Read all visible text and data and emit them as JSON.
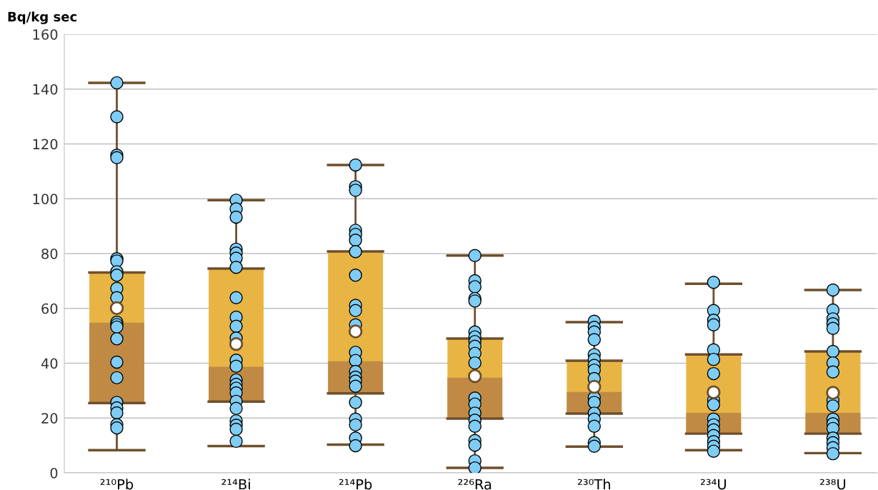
{
  "chart_data": {
    "type": "box",
    "ylabel": "Bq/kg sec",
    "categories": [
      "²¹⁰Pb",
      "²¹⁴Bi",
      "²¹⁴Pb",
      "²²⁶Ra",
      "²³⁰Th",
      "²³⁴U",
      "²³⁸U"
    ],
    "ylim": [
      0,
      160
    ],
    "yticks": [
      0,
      20,
      40,
      60,
      80,
      100,
      120,
      140,
      160
    ],
    "grid": "y",
    "series": [
      {
        "color": "#e8b444",
        "colors": [
          "#c08a45",
          "#c08a45",
          "#c08a45",
          "#c08a45",
          "#c08a45",
          "#c08a45",
          "#c08a45"
        ],
        "boxes": [
          {
            "low": 8.3,
            "q1": 25.5,
            "median": 54.8,
            "q3": 73.1,
            "high": 142.3,
            "mean": 60.1
          },
          {
            "low": 9.8,
            "q1": 26.0,
            "median": 38.7,
            "q3": 74.5,
            "high": 99.5,
            "mean": 47.0
          },
          {
            "low": 10.3,
            "q1": 29.0,
            "median": 40.7,
            "q3": 80.8,
            "high": 112.3,
            "mean": 51.6
          },
          {
            "low": 1.8,
            "q1": 19.8,
            "median": 34.7,
            "q3": 49.0,
            "high": 79.3,
            "mean": 35.3
          },
          {
            "low": 9.6,
            "q1": 21.6,
            "median": 29.5,
            "q3": 40.9,
            "high": 55.0,
            "mean": 31.4
          },
          {
            "low": 8.3,
            "q1": 14.3,
            "median": 21.9,
            "q3": 43.2,
            "high": 69.0,
            "mean": 29.4
          },
          {
            "low": 7.2,
            "q1": 14.3,
            "median": 21.9,
            "q3": 44.3,
            "high": 66.7,
            "mean": 29.2
          }
        ]
      },
      {
        "type": "scatter",
        "color": "#7fcdf5",
        "marker": "circle",
        "x": [
          "²¹⁰Pb",
          "²¹⁰Pb",
          "²¹⁰Pb",
          "²¹⁰Pb",
          "²¹⁰Pb",
          "²¹⁰Pb",
          "²¹⁰Pb",
          "²¹⁰Pb",
          "²¹⁰Pb",
          "²¹⁰Pb",
          "²¹⁰Pb",
          "²¹⁰Pb",
          "²¹⁰Pb",
          "²¹⁰Pb",
          "²¹⁰Pb",
          "²¹⁰Pb",
          "²¹⁰Pb",
          "²¹⁰Pb",
          "²¹⁰Pb",
          "²¹⁰Pb",
          "²¹⁰Pb",
          "²¹⁴Bi",
          "²¹⁴Bi",
          "²¹⁴Bi",
          "²¹⁴Bi",
          "²¹⁴Bi",
          "²¹⁴Bi",
          "²¹⁴Bi",
          "²¹⁴Bi",
          "²¹⁴Bi",
          "²¹⁴Bi",
          "²¹⁴Bi",
          "²¹⁴Bi",
          "²¹⁴Bi",
          "²¹⁴Bi",
          "²¹⁴Bi",
          "²¹⁴Bi",
          "²¹⁴Bi",
          "²¹⁴Bi",
          "²¹⁴Bi",
          "²¹⁴Bi",
          "²¹⁴Bi",
          "²¹⁴Bi",
          "²¹⁴Bi",
          "²¹⁴Pb",
          "²¹⁴Pb",
          "²¹⁴Pb",
          "²¹⁴Pb",
          "²¹⁴Pb",
          "²¹⁴Pb",
          "²¹⁴Pb",
          "²¹⁴Pb",
          "²¹⁴Pb",
          "²¹⁴Pb",
          "²¹⁴Pb",
          "²¹⁴Pb",
          "²¹⁴Pb",
          "²¹⁴Pb",
          "²¹⁴Pb",
          "²¹⁴Pb",
          "²¹⁴Pb",
          "²¹⁴Pb",
          "²¹⁴Pb",
          "²¹⁴Pb",
          "²¹⁴Pb",
          "²¹⁴Pb",
          "²²⁶Ra",
          "²²⁶Ra",
          "²²⁶Ra",
          "²²⁶Ra",
          "²²⁶Ra",
          "²²⁶Ra",
          "²²⁶Ra",
          "²²⁶Ra",
          "²²⁶Ra",
          "²²⁶Ra",
          "²²⁶Ra",
          "²²⁶Ra",
          "²²⁶Ra",
          "²²⁶Ra",
          "²²⁶Ra",
          "²²⁶Ra",
          "²²⁶Ra",
          "²²⁶Ra",
          "²²⁶Ra",
          "²²⁶Ra",
          "²³⁰Th",
          "²³⁰Th",
          "²³⁰Th",
          "²³⁰Th",
          "²³⁰Th",
          "²³⁰Th",
          "²³⁰Th",
          "²³⁰Th",
          "²³⁰Th",
          "²³⁰Th",
          "²³⁰Th",
          "²³⁰Th",
          "²³⁰Th",
          "²³⁰Th",
          "²³⁰Th",
          "²³⁰Th",
          "²³⁴U",
          "²³⁴U",
          "²³⁴U",
          "²³⁴U",
          "²³⁴U",
          "²³⁴U",
          "²³⁴U",
          "²³⁴U",
          "²³⁴U",
          "²³⁴U",
          "²³⁴U",
          "²³⁴U",
          "²³⁴U",
          "²³⁴U",
          "²³⁴U",
          "²³⁴U",
          "²³⁸U",
          "²³⁸U",
          "²³⁸U",
          "²³⁸U",
          "²³⁸U",
          "²³⁸U",
          "²³⁸U",
          "²³⁸U",
          "²³⁸U",
          "²³⁸U",
          "²³⁸U",
          "²³⁸U",
          "²³⁸U",
          "²³⁸U",
          "²³⁸U",
          "²³⁸U",
          "²³⁸U"
        ],
        "values": [
          142.3,
          129.9,
          115.9,
          115.0,
          78.1,
          77.3,
          73.4,
          72.1,
          67.3,
          63.9,
          55.0,
          54.1,
          53.2,
          48.9,
          40.4,
          34.7,
          25.7,
          23.7,
          21.9,
          17.6,
          16.4,
          99.5,
          96.3,
          93.3,
          81.6,
          80.2,
          78.3,
          75.0,
          63.9,
          56.8,
          53.5,
          49.2,
          41.1,
          38.9,
          33.9,
          32.3,
          30.9,
          29.2,
          26.1,
          23.5,
          19.0,
          17.4,
          15.9,
          11.5,
          112.3,
          104.4,
          103.1,
          88.5,
          87.0,
          84.9,
          80.7,
          72.1,
          61.1,
          59.2,
          54.0,
          44.0,
          41.0,
          37.0,
          34.9,
          33.5,
          31.6,
          25.7,
          19.6,
          17.5,
          12.7,
          9.9,
          79.3,
          70.1,
          67.9,
          63.6,
          62.7,
          51.4,
          49.6,
          47.9,
          46.2,
          43.6,
          40.1,
          27.3,
          25.1,
          21.8,
          19.2,
          17.0,
          11.8,
          10.1,
          4.4,
          1.8,
          55.3,
          53.1,
          51.4,
          48.6,
          43.1,
          41.4,
          39.2,
          37.5,
          34.4,
          27.5,
          25.7,
          21.8,
          19.6,
          17.0,
          11.0,
          9.7,
          69.5,
          59.2,
          55.7,
          54.0,
          44.9,
          41.4,
          36.2,
          26.6,
          24.9,
          19.6,
          17.5,
          15.7,
          13.6,
          11.4,
          9.7,
          7.9,
          66.7,
          59.4,
          56.2,
          54.4,
          52.7,
          44.3,
          40.1,
          36.8,
          26.6,
          24.4,
          19.6,
          17.9,
          16.2,
          12.7,
          11.0,
          9.2,
          7.0
        ]
      }
    ]
  }
}
